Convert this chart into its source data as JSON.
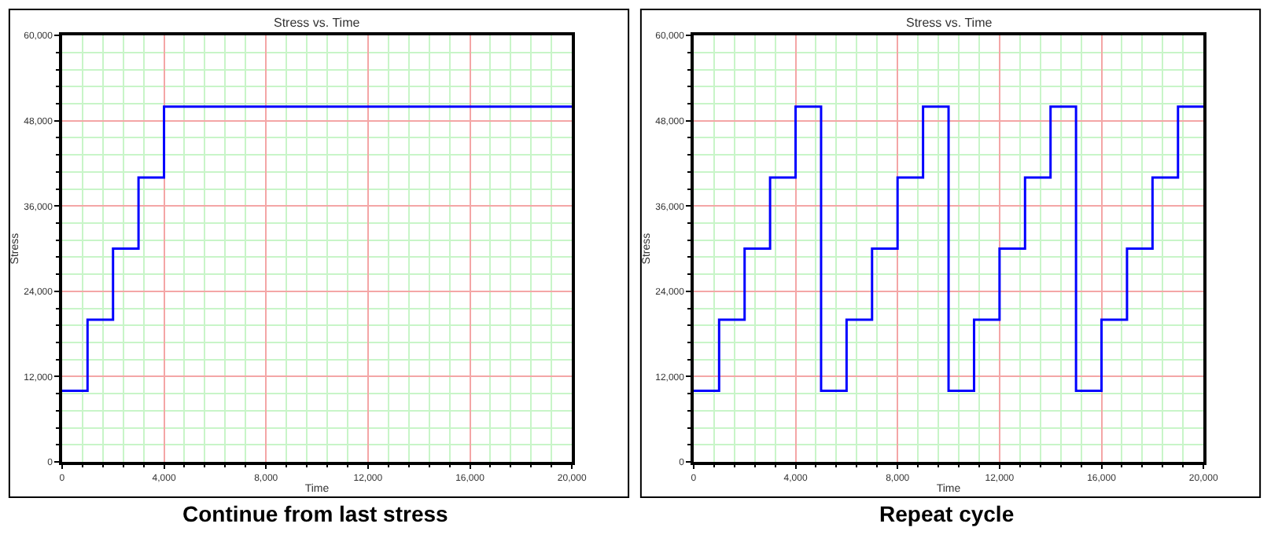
{
  "chart_data": [
    {
      "type": "step",
      "title": "Stress vs. Time",
      "xlabel": "Time",
      "ylabel": "Stress",
      "annotations": [
        "Continue from last stress"
      ],
      "x": [
        0,
        1000,
        2000,
        3000,
        4000,
        20000
      ],
      "series": [
        {
          "color": "#0000ff",
          "values": [
            10000,
            20000,
            30000,
            40000,
            50000,
            50000
          ]
        }
      ],
      "xlim": [
        0,
        20000
      ],
      "ylim": [
        0,
        60000
      ],
      "xticks": [
        0,
        {
          "value": 800,
          "label": null
        },
        {
          "value": 1600,
          "label": null
        },
        {
          "value": 2400,
          "label": null
        },
        {
          "value": 3200,
          "label": null
        },
        {
          "value": 4000,
          "label": "4,000"
        },
        {
          "value": 4800,
          "label": null
        },
        {
          "value": 5600,
          "label": null
        },
        {
          "value": 6400,
          "label": null
        },
        {
          "value": 7200,
          "label": null
        },
        {
          "value": 8000,
          "label": "8,000"
        },
        {
          "value": 8800,
          "label": null
        },
        {
          "value": 9600,
          "label": null
        },
        {
          "value": 10400,
          "label": null
        },
        {
          "value": 11200,
          "label": null
        },
        {
          "value": 12000,
          "label": "12,000"
        },
        {
          "value": 12800,
          "label": null
        },
        {
          "value": 13600,
          "label": null
        },
        {
          "value": 14400,
          "label": null
        },
        {
          "value": 15200,
          "label": null
        },
        {
          "value": 16000,
          "label": "16,000"
        },
        {
          "value": 16800,
          "label": null
        },
        {
          "value": 17600,
          "label": null
        },
        {
          "value": 18400,
          "label": null
        },
        {
          "value": 19200,
          "label": null
        },
        {
          "value": 20000,
          "label": "20,000"
        }
      ],
      "yticks": [
        0,
        {
          "value": 2400,
          "label": null
        },
        {
          "value": 4800,
          "label": null
        },
        {
          "value": 7200,
          "label": null
        },
        {
          "value": 9600,
          "label": null
        },
        {
          "value": 12000,
          "label": "12,000"
        },
        {
          "value": 14400,
          "label": null
        },
        {
          "value": 16800,
          "label": null
        },
        {
          "value": 19200,
          "label": null
        },
        {
          "value": 21600,
          "label": null
        },
        {
          "value": 24000,
          "label": "24,000"
        },
        {
          "value": 26400,
          "label": null
        },
        {
          "value": 28800,
          "label": null
        },
        {
          "value": 31200,
          "label": null
        },
        {
          "value": 33600,
          "label": null
        },
        {
          "value": 36000,
          "label": "36,000"
        },
        {
          "value": 38400,
          "label": null
        },
        {
          "value": 40800,
          "label": null
        },
        {
          "value": 43200,
          "label": null
        },
        {
          "value": 45600,
          "label": null
        },
        {
          "value": 48000,
          "label": "48,000"
        },
        {
          "value": 50400,
          "label": null
        },
        {
          "value": 52800,
          "label": null
        },
        {
          "value": 55200,
          "label": null
        },
        {
          "value": 57600,
          "label": null
        },
        {
          "value": 60000,
          "label": "60,000"
        }
      ],
      "grid": true,
      "marker": "none",
      "line_style": "solid"
    },
    {
      "type": "step",
      "title": "Stress vs. Time",
      "xlabel": "Time",
      "ylabel": "Stress",
      "annotations": [
        "Repeat cycle"
      ],
      "x": [
        0,
        1000,
        2000,
        3000,
        4000,
        5000,
        6000,
        7000,
        8000,
        9000,
        10000,
        11000,
        12000,
        13000,
        14000,
        15000,
        16000,
        17000,
        18000,
        19000,
        20000
      ],
      "series": [
        {
          "color": "#0000ff",
          "values": [
            10000,
            20000,
            30000,
            40000,
            50000,
            10000,
            20000,
            30000,
            40000,
            50000,
            10000,
            20000,
            30000,
            40000,
            50000,
            10000,
            20000,
            30000,
            40000,
            50000,
            50000
          ]
        }
      ],
      "xlim": [
        0,
        20000
      ],
      "ylim": [
        0,
        60000
      ],
      "xticks": [
        0,
        {
          "value": 800,
          "label": null
        },
        {
          "value": 1600,
          "label": null
        },
        {
          "value": 2400,
          "label": null
        },
        {
          "value": 3200,
          "label": null
        },
        {
          "value": 4000,
          "label": "4,000"
        },
        {
          "value": 4800,
          "label": null
        },
        {
          "value": 5600,
          "label": null
        },
        {
          "value": 6400,
          "label": null
        },
        {
          "value": 7200,
          "label": null
        },
        {
          "value": 8000,
          "label": "8,000"
        },
        {
          "value": 8800,
          "label": null
        },
        {
          "value": 9600,
          "label": null
        },
        {
          "value": 10400,
          "label": null
        },
        {
          "value": 11200,
          "label": null
        },
        {
          "value": 12000,
          "label": "12,000"
        },
        {
          "value": 12800,
          "label": null
        },
        {
          "value": 13600,
          "label": null
        },
        {
          "value": 14400,
          "label": null
        },
        {
          "value": 15200,
          "label": null
        },
        {
          "value": 16000,
          "label": "16,000"
        },
        {
          "value": 16800,
          "label": null
        },
        {
          "value": 17600,
          "label": null
        },
        {
          "value": 18400,
          "label": null
        },
        {
          "value": 19200,
          "label": null
        },
        {
          "value": 20000,
          "label": "20,000"
        }
      ],
      "yticks": [
        0,
        {
          "value": 2400,
          "label": null
        },
        {
          "value": 4800,
          "label": null
        },
        {
          "value": 7200,
          "label": null
        },
        {
          "value": 9600,
          "label": null
        },
        {
          "value": 12000,
          "label": "12,000"
        },
        {
          "value": 14400,
          "label": null
        },
        {
          "value": 16800,
          "label": null
        },
        {
          "value": 19200,
          "label": null
        },
        {
          "value": 21600,
          "label": null
        },
        {
          "value": 24000,
          "label": "24,000"
        },
        {
          "value": 26400,
          "label": null
        },
        {
          "value": 28800,
          "label": null
        },
        {
          "value": 31200,
          "label": null
        },
        {
          "value": 33600,
          "label": null
        },
        {
          "value": 36000,
          "label": "36,000"
        },
        {
          "value": 38400,
          "label": null
        },
        {
          "value": 40800,
          "label": null
        },
        {
          "value": 43200,
          "label": null
        },
        {
          "value": 45600,
          "label": null
        },
        {
          "value": 48000,
          "label": "48,000"
        },
        {
          "value": 50400,
          "label": null
        },
        {
          "value": 52800,
          "label": null
        },
        {
          "value": 55200,
          "label": null
        },
        {
          "value": 57600,
          "label": null
        },
        {
          "value": 60000,
          "label": "60,000"
        }
      ],
      "grid": true,
      "marker": "none",
      "line_style": "solid"
    }
  ]
}
